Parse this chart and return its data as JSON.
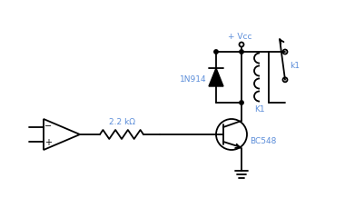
{
  "bg_color": "#ffffff",
  "line_color": "#000000",
  "label_color_blue": "#5b8dd9",
  "vcc_label": "+ Vcc",
  "diode_label": "1N914",
  "resistor_label": "2.2 kΩ",
  "transistor_label": "BC548",
  "relay_label": "K1",
  "switch_label": "k1"
}
